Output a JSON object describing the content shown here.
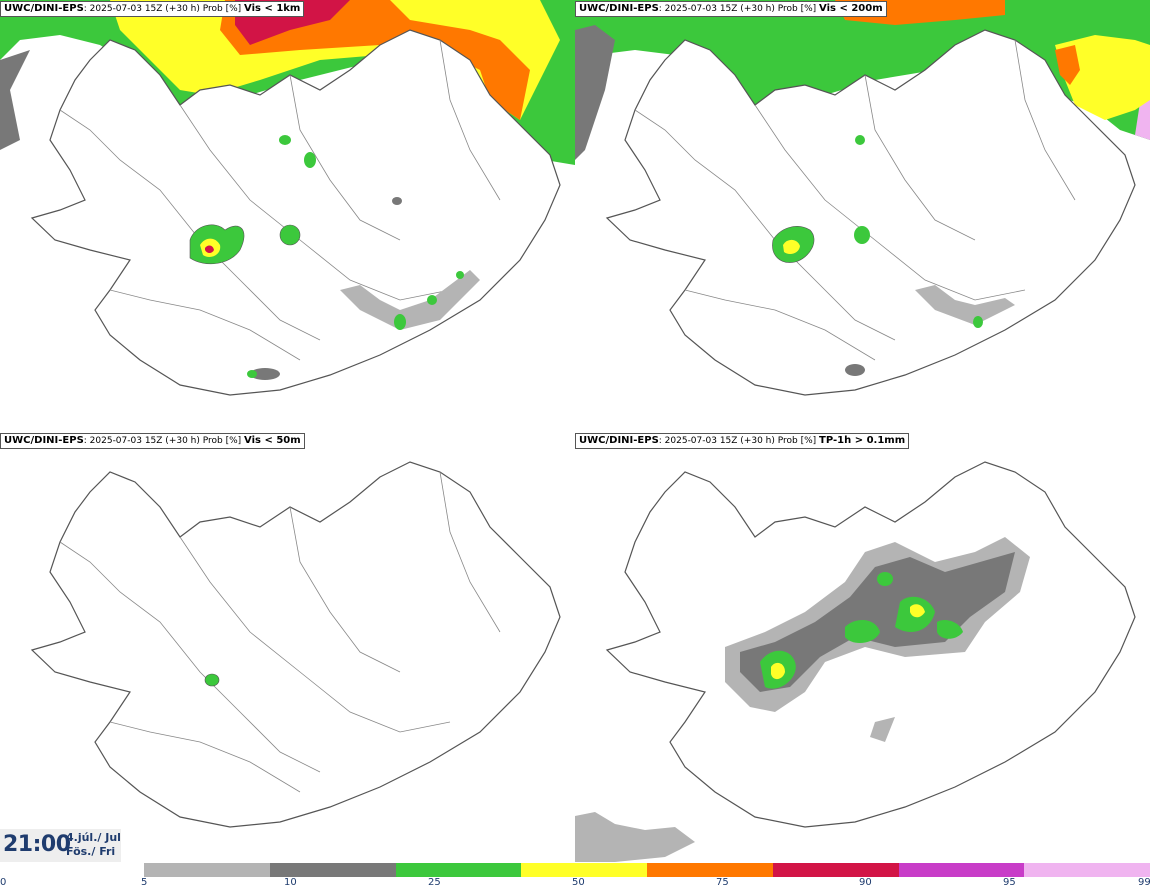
{
  "panels": [
    {
      "model": "UWC/DINI-EPS",
      "run": ": 2025-07-03 15Z (+30 h) Prob [%] ",
      "variable": "Vis < 1km"
    },
    {
      "model": "UWC/DINI-EPS",
      "run": ": 2025-07-03 15Z (+30 h) Prob [%] ",
      "variable": "Vis < 200m"
    },
    {
      "model": "UWC/DINI-EPS",
      "run": ": 2025-07-03 15Z (+30 h) Prob [%] ",
      "variable": "Vis < 50m"
    },
    {
      "model": "UWC/DINI-EPS",
      "run": ": 2025-07-03 15Z (+30 h) Prob [%] ",
      "variable": "TP-1h > 0.1mm"
    }
  ],
  "time": {
    "clock": "21:00",
    "date_line1": "4.júl./ Jul",
    "date_line2": "Fös./ Fri"
  },
  "colorbar": {
    "ticks": [
      "0",
      "5",
      "10",
      "25",
      "50",
      "75",
      "90",
      "95",
      "99"
    ],
    "colors": [
      "#b4b4b4",
      "#787878",
      "#3cc83c",
      "#ffff28",
      "#ff7800",
      "#d21446",
      "#c83cc8",
      "#f0b4f0"
    ]
  }
}
